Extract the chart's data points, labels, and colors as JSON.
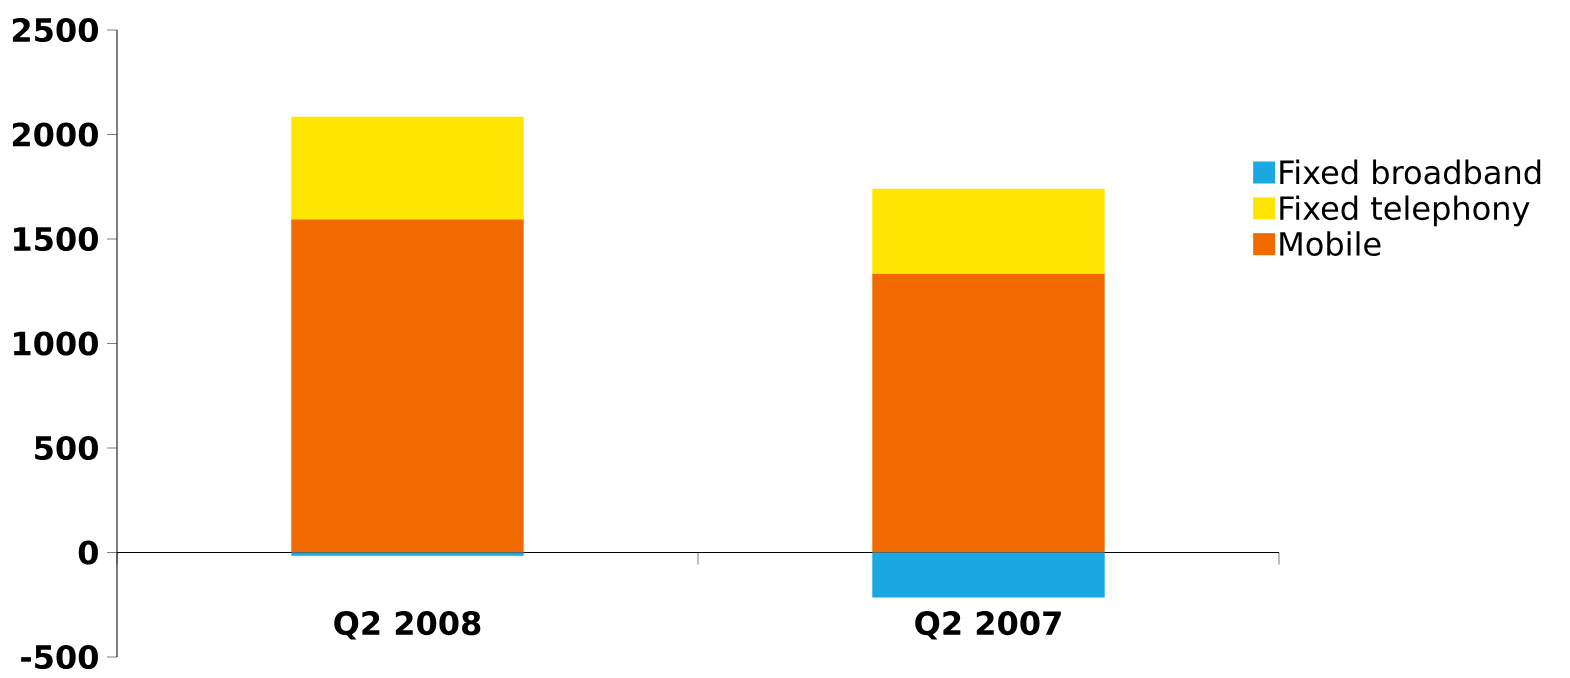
{
  "chart_data": {
    "type": "bar",
    "stacked": true,
    "categories": [
      "Q2 2008",
      "Q2 2007"
    ],
    "series": [
      {
        "name": "Mobile",
        "color": "#f06a00",
        "values": [
          1595,
          1335
        ]
      },
      {
        "name": "Fixed telephony",
        "color": "#ffe600",
        "values": [
          490,
          405
        ]
      },
      {
        "name": "Fixed broadband",
        "color": "#1aa7e2",
        "values": [
          -15,
          -215
        ]
      }
    ],
    "ylim": [
      -500,
      2500
    ],
    "yticks": [
      -500,
      0,
      500,
      1000,
      1500,
      2000,
      2500
    ],
    "grid": false,
    "legend": "right"
  }
}
